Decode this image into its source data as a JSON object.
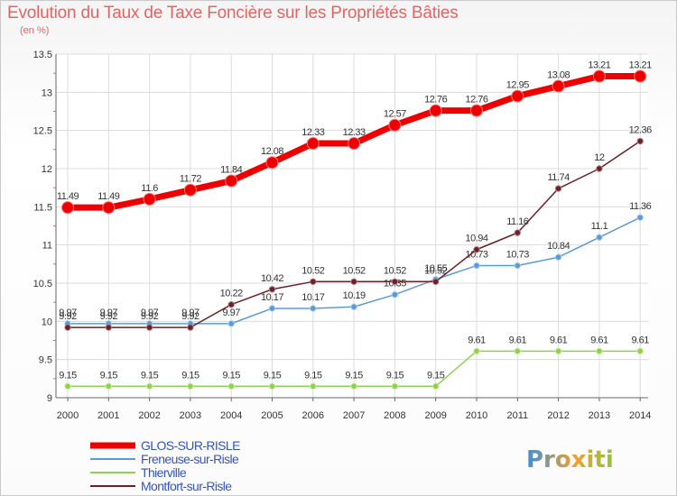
{
  "title": "Evolution du Taux de Taxe Foncière sur les Propriétés Bâties",
  "unit": "(en %)",
  "logo": "Proxiti",
  "chart_data": {
    "type": "line",
    "title": "Evolution du Taux de Taxe Foncière sur les Propriétés Bâties",
    "ylabel": "(en %)",
    "xlabel": "",
    "x": [
      "2000",
      "2001",
      "2002",
      "2003",
      "2004",
      "2005",
      "2006",
      "2007",
      "2008",
      "2009",
      "2010",
      "2011",
      "2012",
      "2013",
      "2014"
    ],
    "ylim": [
      9,
      13.5
    ],
    "yticks": [
      "9",
      "9.5",
      "10",
      "10.5",
      "11",
      "11.5",
      "12",
      "12.5",
      "13",
      "13.5"
    ],
    "legend_position": "bottom-left",
    "series": [
      {
        "name": "GLOS-SUR-RISLE",
        "color": "#ee0000",
        "values": [
          11.49,
          11.49,
          11.6,
          11.72,
          11.84,
          12.08,
          12.33,
          12.33,
          12.57,
          12.76,
          12.76,
          12.95,
          13.08,
          13.21,
          13.21
        ]
      },
      {
        "name": "Freneuse-sur-Risle",
        "color": "#5b9bd5",
        "values": [
          9.97,
          9.97,
          9.97,
          9.97,
          9.97,
          10.17,
          10.17,
          10.19,
          10.35,
          10.55,
          10.73,
          10.73,
          10.84,
          11.1,
          11.36
        ]
      },
      {
        "name": "Thierville",
        "color": "#8fd14f",
        "values": [
          9.15,
          9.15,
          9.15,
          9.15,
          9.15,
          9.15,
          9.15,
          9.15,
          9.15,
          9.15,
          9.61,
          9.61,
          9.61,
          9.61,
          9.61
        ]
      },
      {
        "name": "Montfort-sur-Risle",
        "color": "#6b1f26",
        "values": [
          9.92,
          9.92,
          9.92,
          9.92,
          10.22,
          10.42,
          10.52,
          10.52,
          10.52,
          10.52,
          10.94,
          11.16,
          11.74,
          12,
          12.36
        ]
      }
    ]
  }
}
